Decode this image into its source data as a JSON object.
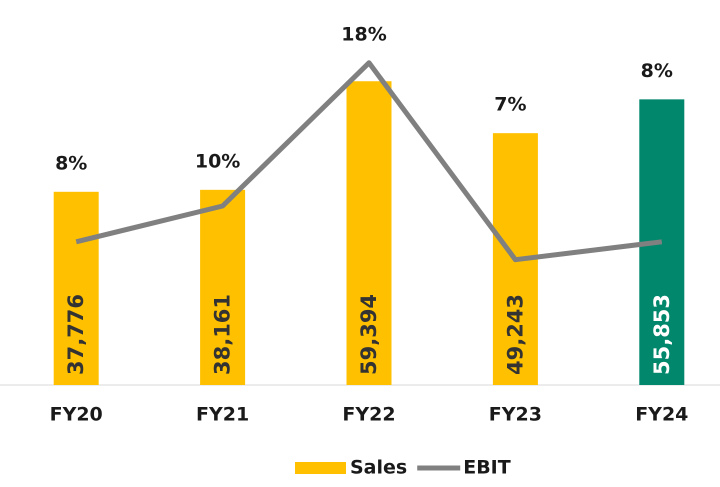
{
  "chart_data": {
    "type": "bar",
    "categories": [
      "FY20",
      "FY21",
      "FY22",
      "FY23",
      "FY24"
    ],
    "series": [
      {
        "name": "Sales",
        "type": "bar",
        "color": "#FFC000",
        "colors": [
          "#FFC000",
          "#FFC000",
          "#FFC000",
          "#FFC000",
          "#00876C"
        ],
        "values": [
          37776,
          38161,
          59394,
          49243,
          55853
        ],
        "value_labels": [
          "37,776",
          "38,161",
          "59,394",
          "49,243",
          "55,853"
        ]
      },
      {
        "name": "EBIT",
        "type": "line",
        "axis": "y2",
        "color": "#808080",
        "values": [
          8,
          10,
          18,
          7,
          8
        ],
        "value_labels": [
          "8%",
          "10%",
          "18%",
          "7%",
          "8%"
        ]
      }
    ],
    "ylim": [
      0,
      70000
    ],
    "y2lim": [
      0,
      20
    ],
    "legend": "bottom"
  }
}
